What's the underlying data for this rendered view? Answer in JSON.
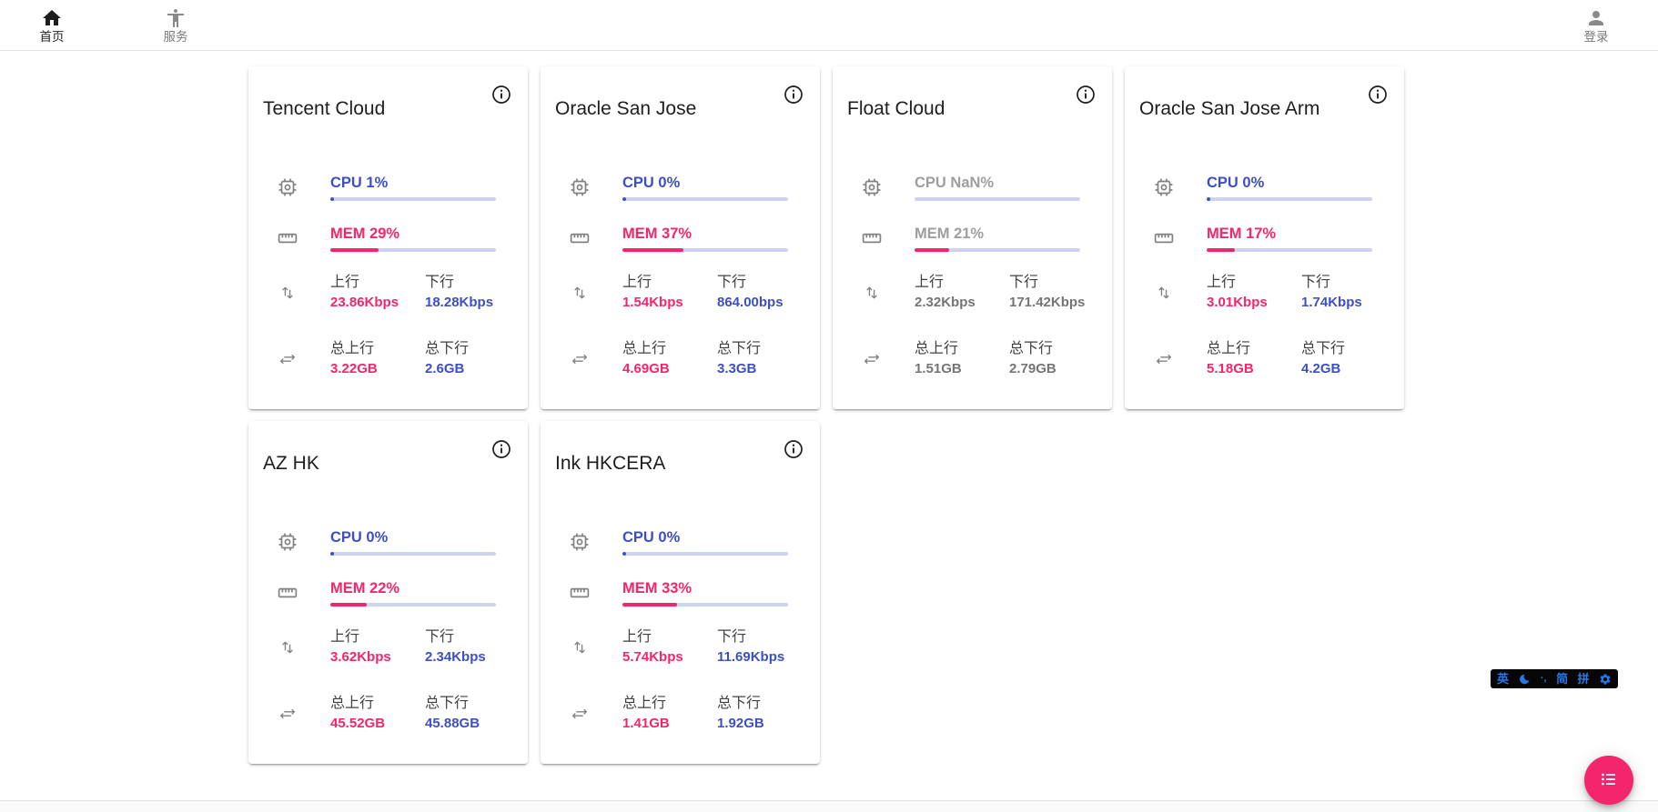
{
  "nav": {
    "home": {
      "label": "首页"
    },
    "services": {
      "label": "服务"
    },
    "login": {
      "label": "登录"
    }
  },
  "labels": {
    "up": "上行",
    "down": "下行",
    "total_up": "总上行",
    "total_down": "总下行"
  },
  "servers": [
    {
      "name": "Tencent Cloud",
      "online": true,
      "cpu": {
        "label": "CPU 1%",
        "percent": 1
      },
      "mem": {
        "label": "MEM 29%",
        "percent": 29
      },
      "net": {
        "up": "23.86Kbps",
        "down": "18.28Kbps"
      },
      "total": {
        "up": "3.22GB",
        "down": "2.6GB"
      }
    },
    {
      "name": "Oracle San Jose",
      "online": true,
      "cpu": {
        "label": "CPU 0%",
        "percent": 0
      },
      "mem": {
        "label": "MEM 37%",
        "percent": 37
      },
      "net": {
        "up": "1.54Kbps",
        "down": "864.00bps"
      },
      "total": {
        "up": "4.69GB",
        "down": "3.3GB"
      }
    },
    {
      "name": "Float Cloud",
      "online": false,
      "cpu": {
        "label": "CPU NaN%",
        "percent": null
      },
      "mem": {
        "label": "MEM 21%",
        "percent": 21
      },
      "net": {
        "up": "2.32Kbps",
        "down": "171.42Kbps"
      },
      "total": {
        "up": "1.51GB",
        "down": "2.79GB"
      }
    },
    {
      "name": "Oracle San Jose Arm",
      "online": true,
      "cpu": {
        "label": "CPU 0%",
        "percent": 0
      },
      "mem": {
        "label": "MEM 17%",
        "percent": 17
      },
      "net": {
        "up": "3.01Kbps",
        "down": "1.74Kbps"
      },
      "total": {
        "up": "5.18GB",
        "down": "4.2GB"
      }
    },
    {
      "name": "AZ HK",
      "online": true,
      "cpu": {
        "label": "CPU 0%",
        "percent": 0
      },
      "mem": {
        "label": "MEM 22%",
        "percent": 22
      },
      "net": {
        "up": "3.62Kbps",
        "down": "2.34Kbps"
      },
      "total": {
        "up": "45.52GB",
        "down": "45.88GB"
      }
    },
    {
      "name": "Ink HKCERA",
      "online": true,
      "cpu": {
        "label": "CPU 0%",
        "percent": 0
      },
      "mem": {
        "label": "MEM 33%",
        "percent": 33
      },
      "net": {
        "up": "5.74Kbps",
        "down": "11.69Kbps"
      },
      "total": {
        "up": "1.41GB",
        "down": "1.92GB"
      }
    }
  ],
  "ime": {
    "lang": "英",
    "punct": "·,",
    "simplified": "简",
    "pinyin": "拼"
  },
  "colors": {
    "pink": "#f4256d",
    "blue": "#3d4fc4",
    "track": "#ced3ee",
    "grayLabel": "#9e9e9e",
    "grayValue": "#757575",
    "imeBlue": "#2677e8",
    "iconGray": "#828282",
    "navActive": "#1f1f1f",
    "navInactive": "#8a8a8a"
  }
}
